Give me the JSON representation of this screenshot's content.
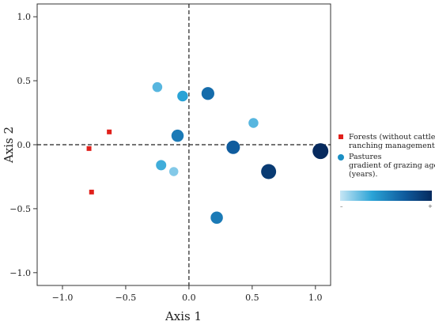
{
  "chart_data": {
    "type": "scatter",
    "title": "",
    "xlabel": "Axis 1",
    "ylabel": "Axis 2",
    "xlim": [
      -1.2,
      1.12
    ],
    "ylim": [
      -1.1,
      1.1
    ],
    "xticks": [
      -1.0,
      -0.5,
      0.0,
      0.5,
      1.0
    ],
    "yticks": [
      -1.0,
      -0.5,
      0.0,
      0.5,
      1.0
    ],
    "xtick_labels": [
      "−1.0",
      "−0.5",
      "0.0",
      "0.5",
      "1.0"
    ],
    "ytick_labels": [
      "−1.0",
      "−0.5",
      "0.0",
      "0.5",
      "1.0"
    ],
    "reference_lines": {
      "x": 0,
      "y": 0,
      "style": "dashed"
    },
    "grid": false,
    "legend_position": "right",
    "series": [
      {
        "name": "Forests (without cattle ranching management).",
        "marker": "square",
        "color": "#e0201b",
        "points": [
          {
            "x": -0.63,
            "y": 0.1
          },
          {
            "x": -0.79,
            "y": -0.03
          },
          {
            "x": -0.77,
            "y": -0.37
          }
        ]
      },
      {
        "name": "Pastures gradient of grazing ages (years).",
        "marker": "circle",
        "color": "#1a8fc4",
        "points": [
          {
            "x": -0.25,
            "y": 0.45,
            "age": 0.25
          },
          {
            "x": -0.05,
            "y": 0.38,
            "age": 0.35
          },
          {
            "x": 0.15,
            "y": 0.4,
            "age": 0.62
          },
          {
            "x": -0.09,
            "y": 0.07,
            "age": 0.55
          },
          {
            "x": -0.22,
            "y": -0.16,
            "age": 0.3
          },
          {
            "x": -0.12,
            "y": -0.21,
            "age": 0.15
          },
          {
            "x": 0.51,
            "y": 0.17,
            "age": 0.25
          },
          {
            "x": 0.35,
            "y": -0.02,
            "age": 0.7
          },
          {
            "x": 0.22,
            "y": -0.57,
            "age": 0.55
          },
          {
            "x": 0.63,
            "y": -0.21,
            "age": 0.9
          },
          {
            "x": 1.04,
            "y": -0.05,
            "age": 1.0
          }
        ]
      }
    ]
  },
  "legend": {
    "forests_line1": "Forests (without cattle",
    "forests_line2": "ranching management).",
    "pastures_line1": "Pastures",
    "pastures_line2": "gradient of grazing ages",
    "pastures_line3": "(years).",
    "gradient_min_label": "–",
    "gradient_max_label": "+",
    "gradient_colors": [
      "#c6e6f5",
      "#2aa3d6",
      "#0f5c9e",
      "#062a5e"
    ]
  }
}
